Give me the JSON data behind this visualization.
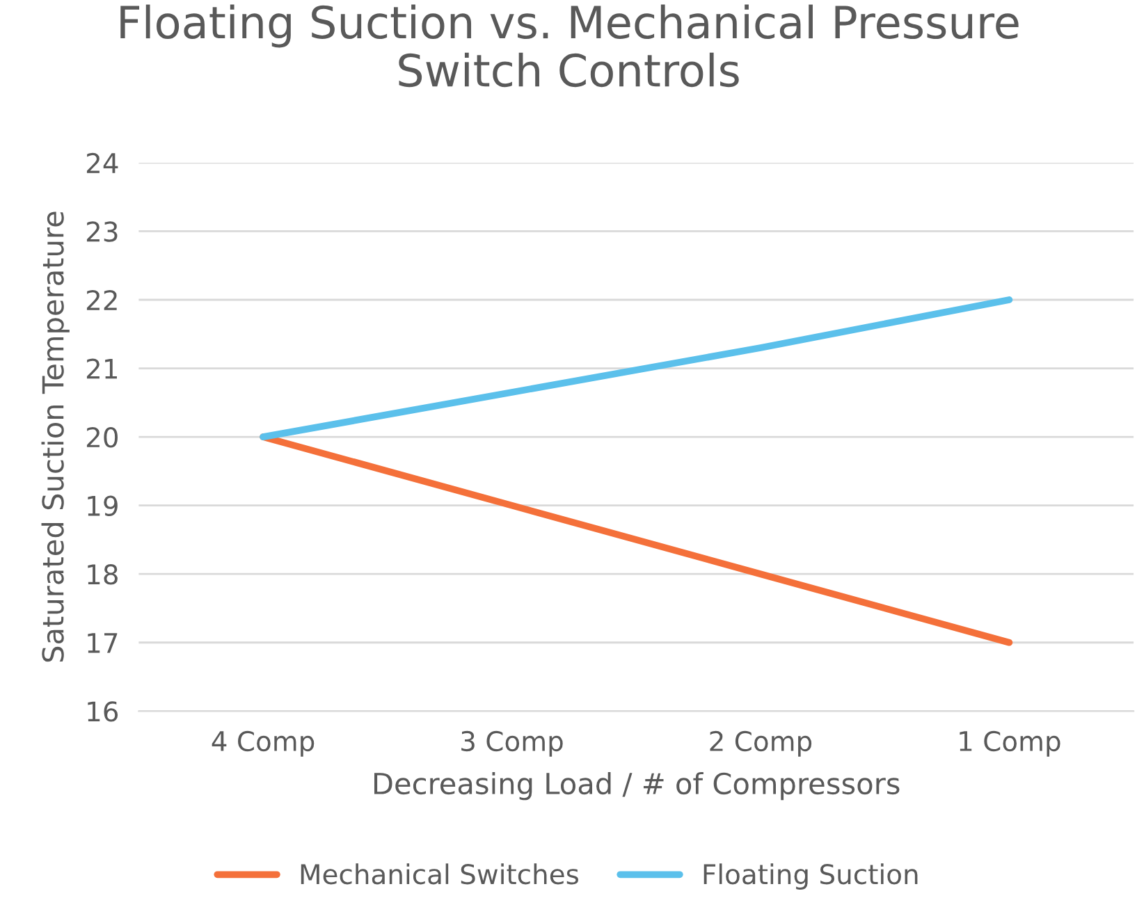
{
  "chart_data": {
    "type": "line",
    "title": "Floating Suction vs. Mechanical Pressure\nSwitch Controls",
    "xlabel": "Decreasing Load / # of Compressors",
    "ylabel": "Saturated Suction Temperature",
    "categories": [
      "4 Comp",
      "3 Comp",
      "2 Comp",
      "1 Comp"
    ],
    "series": [
      {
        "name": "Mechanical Switches",
        "color": "#f4703a",
        "values": [
          20,
          19,
          18,
          17
        ]
      },
      {
        "name": "Floating Suction",
        "color": "#5bc0eb",
        "values": [
          20,
          20.65,
          21.3,
          22
        ]
      }
    ],
    "ylim": [
      16,
      24
    ],
    "yticks": [
      16,
      17,
      18,
      19,
      20,
      21,
      22,
      23,
      24
    ],
    "grid": "y",
    "legend": "bottom",
    "marker": "none",
    "line_style": "solid"
  }
}
